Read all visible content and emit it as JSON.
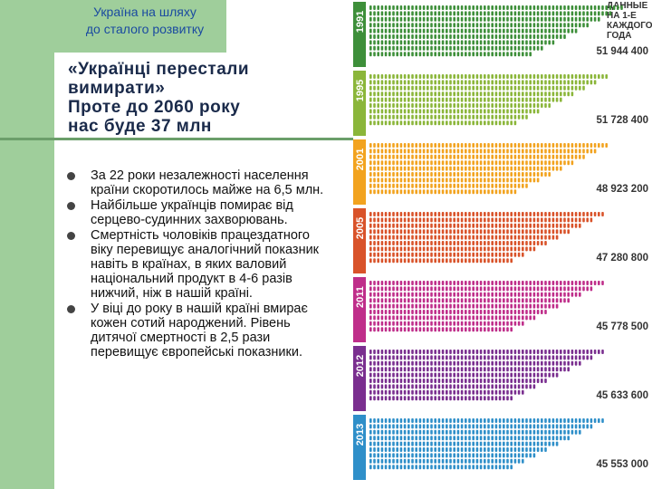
{
  "header": {
    "line1": "Україна на шляху",
    "line2": "до сталого розвитку"
  },
  "title": {
    "line1": "«Українці перестали",
    "line2": "вимирати»",
    "line3": "Проте до 2060 року",
    "line4": "нас буде 37 млн"
  },
  "bullets": [
    {
      "text": "За 22 роки незалежності населення країни скоротилось майже на 6,5 млн."
    },
    {
      "text": "Найбільше українців помирає від серцево-судинних захворювань."
    },
    {
      "text": "Смертність чоловіків працездатного віку перевищує аналогічний показник навіть в країнах, в яких валовий національний продукт в 4-6 разів нижчий, ніж в нашій країні."
    },
    {
      "text": "У віці до року в нашій країні вмирає кожен сотий народжений. Рівень дитячої смертності в 2,5 рази перевищує європейські показники."
    }
  ],
  "infographic": {
    "legend": [
      "ДАННЫЕ",
      "НА 1-Е",
      "КАЖДОГО",
      "ГОДА"
    ],
    "rows": [
      {
        "year": "1991",
        "population": "51 944 400",
        "value": 51944400,
        "color": "#3e8f3a"
      },
      {
        "year": "1995",
        "population": "51 728 400",
        "value": 51728400,
        "color": "#8bb63a"
      },
      {
        "year": "2001",
        "population": "48 923 200",
        "value": 48923200,
        "color": "#f2a31f"
      },
      {
        "year": "2005",
        "population": "47 280 800",
        "value": 47280800,
        "color": "#d9532a"
      },
      {
        "year": "2011",
        "population": "45 778 500",
        "value": 45778500,
        "color": "#bf2e8a"
      },
      {
        "year": "2012",
        "population": "45 633 600",
        "value": 45633600,
        "color": "#7a2f8f"
      },
      {
        "year": "2013",
        "population": "45 553 000",
        "value": 45553000,
        "color": "#2f8fc9"
      }
    ]
  }
}
